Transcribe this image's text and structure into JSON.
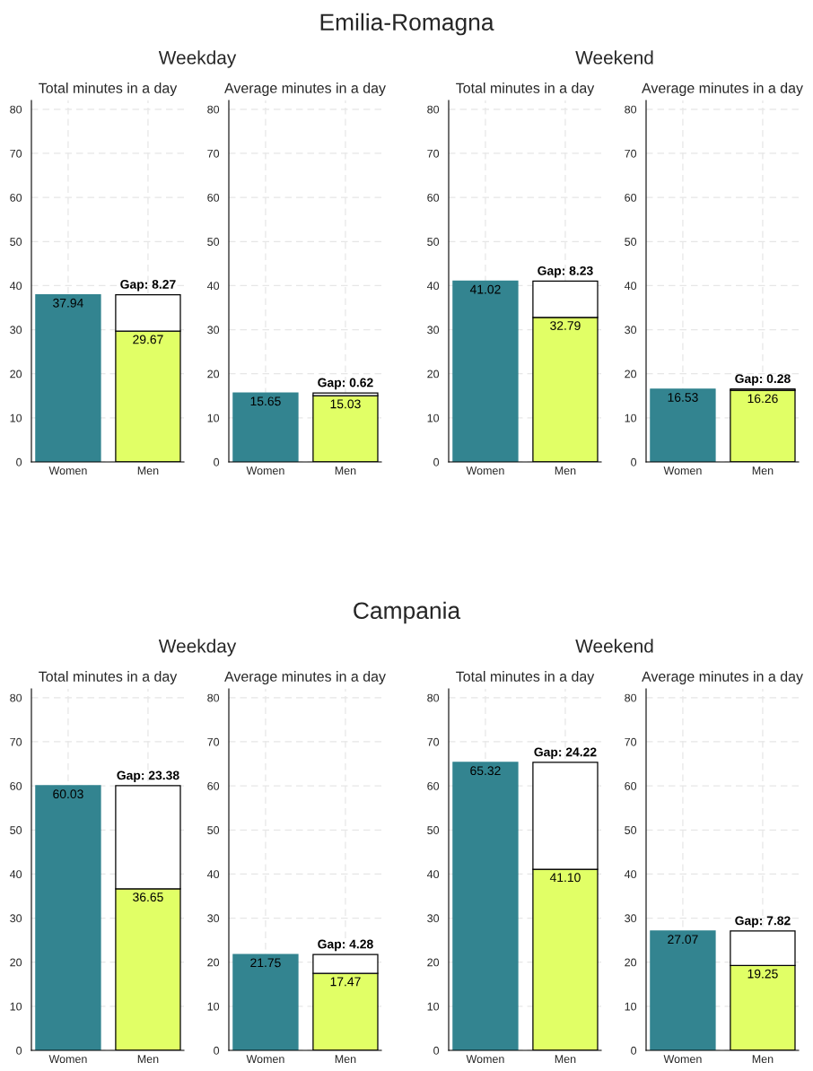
{
  "chart_data": [
    {
      "type": "bar",
      "stacked": true,
      "title": "Total minutes in a day",
      "annotations": [
        "Weekday",
        "Emilia-Romagna"
      ],
      "categories": [
        "Women",
        "Men"
      ],
      "ylim": [
        0,
        82
      ],
      "yticks": [
        0,
        10,
        20,
        30,
        40,
        50,
        60,
        70,
        80
      ],
      "grid": true,
      "legend": false,
      "series": [
        {
          "colors": [
            "#338490",
            "#e1ff66"
          ],
          "values": [
            37.94,
            29.67
          ],
          "value_labels": [
            "37.94",
            "29.67"
          ]
        },
        {
          "color": "#ffffff",
          "values": [
            null,
            8.27
          ],
          "value_labels": [
            null,
            "Gap: 8.27"
          ]
        }
      ]
    },
    {
      "type": "bar",
      "stacked": true,
      "title": "Average minutes in a day",
      "categories": [
        "Women",
        "Men"
      ],
      "ylim": [
        0,
        82
      ],
      "yticks": [
        0,
        10,
        20,
        30,
        40,
        50,
        60,
        70,
        80
      ],
      "grid": true,
      "legend": false,
      "series": [
        {
          "colors": [
            "#338490",
            "#e1ff66"
          ],
          "values": [
            15.65,
            15.03
          ],
          "value_labels": [
            "15.65",
            "15.03"
          ]
        },
        {
          "color": "#ffffff",
          "values": [
            null,
            0.62
          ],
          "value_labels": [
            null,
            "Gap: 0.62"
          ]
        }
      ]
    },
    {
      "type": "bar",
      "stacked": true,
      "title": "Total minutes in a day",
      "annotations": [
        "Weekend"
      ],
      "categories": [
        "Women",
        "Men"
      ],
      "ylim": [
        0,
        82
      ],
      "yticks": [
        0,
        10,
        20,
        30,
        40,
        50,
        60,
        70,
        80
      ],
      "grid": true,
      "legend": false,
      "series": [
        {
          "colors": [
            "#338490",
            "#e1ff66"
          ],
          "values": [
            41.02,
            32.79
          ],
          "value_labels": [
            "41.02",
            "32.79"
          ]
        },
        {
          "color": "#ffffff",
          "values": [
            null,
            8.23
          ],
          "value_labels": [
            null,
            "Gap: 8.23"
          ]
        }
      ]
    },
    {
      "type": "bar",
      "stacked": true,
      "title": "Average minutes in a day",
      "categories": [
        "Women",
        "Men"
      ],
      "ylim": [
        0,
        82
      ],
      "yticks": [
        0,
        10,
        20,
        30,
        40,
        50,
        60,
        70,
        80
      ],
      "grid": true,
      "legend": false,
      "series": [
        {
          "colors": [
            "#338490",
            "#e1ff66"
          ],
          "values": [
            16.53,
            16.26
          ],
          "value_labels": [
            "16.53",
            "16.26"
          ]
        },
        {
          "color": "#ffffff",
          "values": [
            null,
            0.28
          ],
          "value_labels": [
            null,
            "Gap: 0.28"
          ]
        }
      ]
    },
    {
      "type": "bar",
      "stacked": true,
      "title": "Total minutes in a day",
      "annotations": [
        "Weekday",
        "Campania"
      ],
      "categories": [
        "Women",
        "Men"
      ],
      "ylim": [
        0,
        82
      ],
      "yticks": [
        0,
        10,
        20,
        30,
        40,
        50,
        60,
        70,
        80
      ],
      "grid": true,
      "legend": false,
      "series": [
        {
          "colors": [
            "#338490",
            "#e1ff66"
          ],
          "values": [
            60.03,
            36.65
          ],
          "value_labels": [
            "60.03",
            "36.65"
          ]
        },
        {
          "color": "#ffffff",
          "values": [
            null,
            23.38
          ],
          "value_labels": [
            null,
            "Gap: 23.38"
          ]
        }
      ]
    },
    {
      "type": "bar",
      "stacked": true,
      "title": "Average minutes in a day",
      "categories": [
        "Women",
        "Men"
      ],
      "ylim": [
        0,
        82
      ],
      "yticks": [
        0,
        10,
        20,
        30,
        40,
        50,
        60,
        70,
        80
      ],
      "grid": true,
      "legend": false,
      "series": [
        {
          "colors": [
            "#338490",
            "#e1ff66"
          ],
          "values": [
            21.75,
            17.47
          ],
          "value_labels": [
            "21.75",
            "17.47"
          ]
        },
        {
          "color": "#ffffff",
          "values": [
            null,
            4.28
          ],
          "value_labels": [
            null,
            "Gap: 4.28"
          ]
        }
      ]
    },
    {
      "type": "bar",
      "stacked": true,
      "title": "Total minutes in a day",
      "annotations": [
        "Weekend"
      ],
      "categories": [
        "Women",
        "Men"
      ],
      "ylim": [
        0,
        82
      ],
      "yticks": [
        0,
        10,
        20,
        30,
        40,
        50,
        60,
        70,
        80
      ],
      "grid": true,
      "legend": false,
      "series": [
        {
          "colors": [
            "#338490",
            "#e1ff66"
          ],
          "values": [
            65.32,
            41.1
          ],
          "value_labels": [
            "65.32",
            "41.10"
          ]
        },
        {
          "color": "#ffffff",
          "values": [
            null,
            24.22
          ],
          "value_labels": [
            null,
            "Gap: 24.22"
          ]
        }
      ]
    },
    {
      "type": "bar",
      "stacked": true,
      "title": "Average minutes in a day",
      "categories": [
        "Women",
        "Men"
      ],
      "ylim": [
        0,
        82
      ],
      "yticks": [
        0,
        10,
        20,
        30,
        40,
        50,
        60,
        70,
        80
      ],
      "grid": true,
      "legend": false,
      "series": [
        {
          "colors": [
            "#338490",
            "#e1ff66"
          ],
          "values": [
            27.07,
            19.25
          ],
          "value_labels": [
            "27.07",
            "19.25"
          ]
        },
        {
          "color": "#ffffff",
          "values": [
            null,
            7.82
          ],
          "value_labels": [
            null,
            "Gap: 7.82"
          ]
        }
      ]
    }
  ]
}
